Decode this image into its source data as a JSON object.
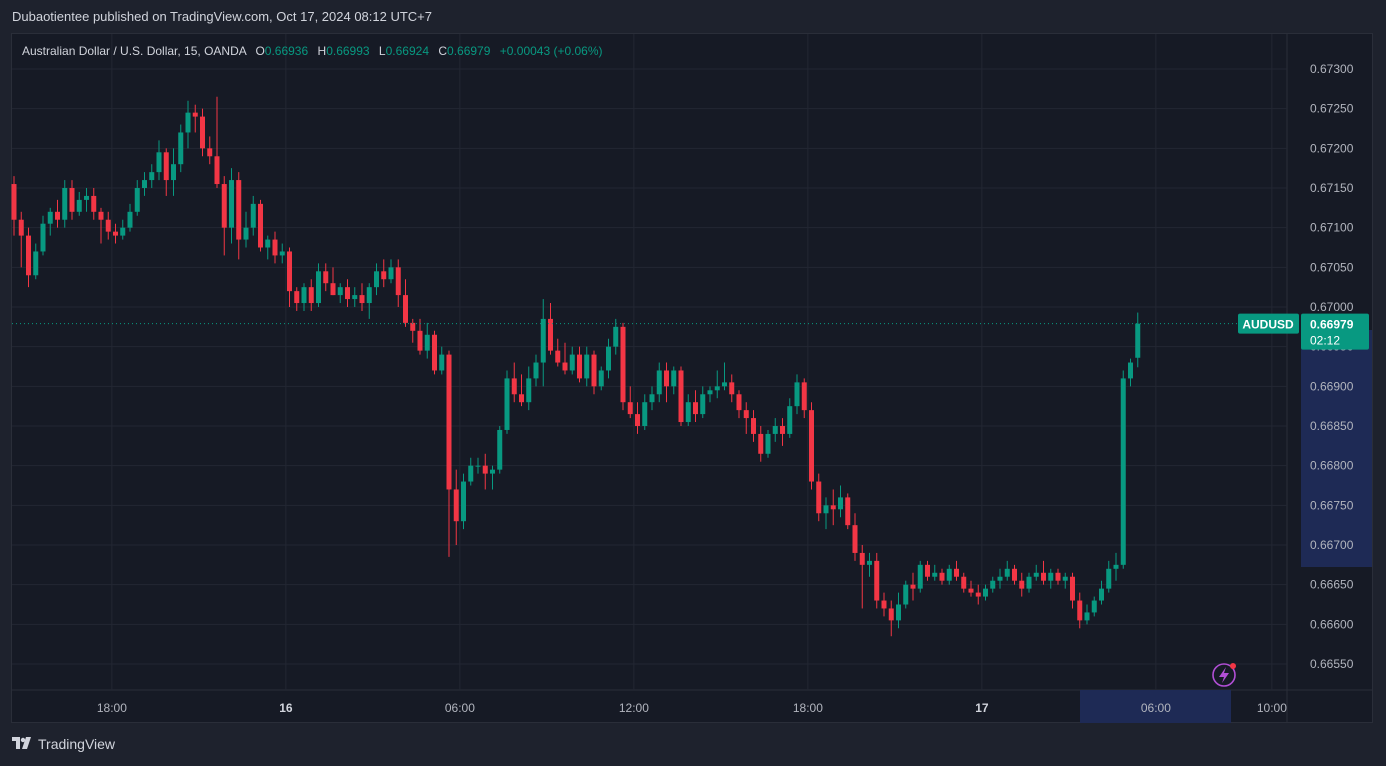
{
  "header": {
    "publish_line": "Dubaotientee published on TradingView.com, Oct 17, 2024 08:12 UTC+7"
  },
  "legend": {
    "symbol": "Australian Dollar / U.S. Dollar, 15, OANDA",
    "o_label": "O",
    "o_value": "0.66936",
    "h_label": "H",
    "h_value": "0.66993",
    "l_label": "L",
    "l_value": "0.66924",
    "c_label": "C",
    "c_value": "0.66979",
    "change": "+0.00043 (+0.06%)"
  },
  "price_tag": {
    "symbol": "AUDUSD",
    "price": "0.66979",
    "countdown": "02:12"
  },
  "footer": {
    "brand": "TradingView"
  },
  "icons": {
    "flash": "lightning-bolt-icon",
    "logo": "tradingview-logo-icon"
  },
  "colors": {
    "up": "#089981",
    "down": "#f23645",
    "bg": "#161a25",
    "grid": "#232733"
  },
  "chart_data": {
    "type": "candlestick",
    "symbol": "AUDUSD",
    "timeframe": "15",
    "ylim": [
      0.6652,
      0.6734
    ],
    "y_ticks": [
      "0.67300",
      "0.67250",
      "0.67200",
      "0.67150",
      "0.67100",
      "0.67050",
      "0.67000",
      "0.66950",
      "0.66900",
      "0.66850",
      "0.66800",
      "0.66750",
      "0.66700",
      "0.66650",
      "0.66600",
      "0.66550"
    ],
    "x_ticks": [
      {
        "label": "18:00",
        "bold": false,
        "i": 13.5
      },
      {
        "label": "16",
        "bold": true,
        "i": 37.5
      },
      {
        "label": "06:00",
        "bold": false,
        "i": 61.5
      },
      {
        "label": "12:00",
        "bold": false,
        "i": 85.5
      },
      {
        "label": "18:00",
        "bold": false,
        "i": 109.5
      },
      {
        "label": "17",
        "bold": true,
        "i": 133.5
      },
      {
        "label": "06:00",
        "bold": false,
        "i": 157.5
      },
      {
        "label": "10:00",
        "bold": false,
        "i": 173.5
      }
    ],
    "candles": [
      [
        0.67155,
        0.67165,
        0.6709,
        0.6711
      ],
      [
        0.6711,
        0.6712,
        0.6705,
        0.6709
      ],
      [
        0.6709,
        0.671,
        0.67025,
        0.6704
      ],
      [
        0.6704,
        0.6708,
        0.67035,
        0.6707
      ],
      [
        0.6707,
        0.67115,
        0.67065,
        0.67105
      ],
      [
        0.67105,
        0.67125,
        0.6709,
        0.6712
      ],
      [
        0.6712,
        0.67135,
        0.671,
        0.6711
      ],
      [
        0.6711,
        0.6716,
        0.671,
        0.6715
      ],
      [
        0.6715,
        0.6716,
        0.6711,
        0.6712
      ],
      [
        0.6712,
        0.67145,
        0.67115,
        0.67135
      ],
      [
        0.67135,
        0.6715,
        0.6712,
        0.6714
      ],
      [
        0.6714,
        0.6715,
        0.6711,
        0.6712
      ],
      [
        0.6712,
        0.67125,
        0.6708,
        0.6711
      ],
      [
        0.6711,
        0.6712,
        0.67085,
        0.67095
      ],
      [
        0.67095,
        0.67105,
        0.6708,
        0.6709
      ],
      [
        0.6709,
        0.6711,
        0.67085,
        0.671
      ],
      [
        0.671,
        0.6713,
        0.67095,
        0.6712
      ],
      [
        0.6712,
        0.6716,
        0.67115,
        0.6715
      ],
      [
        0.6715,
        0.6717,
        0.6714,
        0.6716
      ],
      [
        0.6716,
        0.6718,
        0.6715,
        0.6717
      ],
      [
        0.6717,
        0.6721,
        0.6716,
        0.67195
      ],
      [
        0.67195,
        0.672,
        0.6714,
        0.6716
      ],
      [
        0.6716,
        0.672,
        0.6714,
        0.6718
      ],
      [
        0.6718,
        0.6723,
        0.6717,
        0.6722
      ],
      [
        0.6722,
        0.6726,
        0.672,
        0.67245
      ],
      [
        0.67245,
        0.67255,
        0.6722,
        0.6724
      ],
      [
        0.6724,
        0.6725,
        0.6719,
        0.672
      ],
      [
        0.672,
        0.67215,
        0.6718,
        0.6719
      ],
      [
        0.6719,
        0.67265,
        0.6715,
        0.67155
      ],
      [
        0.67155,
        0.67165,
        0.67065,
        0.671
      ],
      [
        0.671,
        0.67175,
        0.6708,
        0.6716
      ],
      [
        0.6716,
        0.6717,
        0.6706,
        0.67085
      ],
      [
        0.67085,
        0.6712,
        0.67075,
        0.671
      ],
      [
        0.671,
        0.6714,
        0.6709,
        0.6713
      ],
      [
        0.6713,
        0.67135,
        0.6707,
        0.67075
      ],
      [
        0.67075,
        0.6709,
        0.6706,
        0.67085
      ],
      [
        0.67085,
        0.67095,
        0.67055,
        0.67065
      ],
      [
        0.67065,
        0.6708,
        0.67055,
        0.6707
      ],
      [
        0.6707,
        0.67075,
        0.67,
        0.6702
      ],
      [
        0.6702,
        0.67025,
        0.66995,
        0.67005
      ],
      [
        0.67005,
        0.6703,
        0.66995,
        0.67025
      ],
      [
        0.67025,
        0.67035,
        0.66995,
        0.67005
      ],
      [
        0.67005,
        0.67055,
        0.67,
        0.67045
      ],
      [
        0.67045,
        0.67055,
        0.6702,
        0.6703
      ],
      [
        0.6703,
        0.6705,
        0.67015,
        0.67015
      ],
      [
        0.67015,
        0.6703,
        0.67005,
        0.67025
      ],
      [
        0.67025,
        0.67035,
        0.67,
        0.6701
      ],
      [
        0.6701,
        0.67025,
        0.67,
        0.67015
      ],
      [
        0.67015,
        0.6703,
        0.66995,
        0.67005
      ],
      [
        0.67005,
        0.6703,
        0.66985,
        0.67025
      ],
      [
        0.67025,
        0.67055,
        0.67015,
        0.67045
      ],
      [
        0.67045,
        0.6706,
        0.67025,
        0.67035
      ],
      [
        0.67035,
        0.6706,
        0.6703,
        0.6705
      ],
      [
        0.6705,
        0.6706,
        0.67,
        0.67015
      ],
      [
        0.67015,
        0.67035,
        0.66975,
        0.6698
      ],
      [
        0.6698,
        0.66985,
        0.66955,
        0.6697
      ],
      [
        0.6697,
        0.66985,
        0.6694,
        0.66945
      ],
      [
        0.66945,
        0.6698,
        0.66935,
        0.66965
      ],
      [
        0.66965,
        0.6697,
        0.66915,
        0.6692
      ],
      [
        0.6692,
        0.6695,
        0.66915,
        0.6694
      ],
      [
        0.6694,
        0.66945,
        0.66685,
        0.6677
      ],
      [
        0.6677,
        0.66795,
        0.667,
        0.6673
      ],
      [
        0.6673,
        0.6679,
        0.6672,
        0.6678
      ],
      [
        0.6678,
        0.6681,
        0.66775,
        0.668
      ],
      [
        0.668,
        0.6681,
        0.6679,
        0.668
      ],
      [
        0.668,
        0.66815,
        0.6677,
        0.6679
      ],
      [
        0.6679,
        0.668,
        0.6677,
        0.66795
      ],
      [
        0.66795,
        0.6685,
        0.6679,
        0.66845
      ],
      [
        0.66845,
        0.6692,
        0.6684,
        0.6691
      ],
      [
        0.6691,
        0.6693,
        0.6688,
        0.6689
      ],
      [
        0.6689,
        0.66915,
        0.66875,
        0.6688
      ],
      [
        0.6688,
        0.66925,
        0.6687,
        0.6691
      ],
      [
        0.6691,
        0.6694,
        0.669,
        0.6693
      ],
      [
        0.6693,
        0.6701,
        0.669,
        0.66985
      ],
      [
        0.66985,
        0.67005,
        0.6694,
        0.66945
      ],
      [
        0.66945,
        0.6696,
        0.66925,
        0.6693
      ],
      [
        0.6693,
        0.66955,
        0.66915,
        0.6692
      ],
      [
        0.6692,
        0.6695,
        0.66915,
        0.6694
      ],
      [
        0.6694,
        0.6695,
        0.66905,
        0.6691
      ],
      [
        0.6691,
        0.6695,
        0.669,
        0.6694
      ],
      [
        0.6694,
        0.66945,
        0.6689,
        0.669
      ],
      [
        0.669,
        0.66925,
        0.66895,
        0.6692
      ],
      [
        0.6692,
        0.6696,
        0.6691,
        0.6695
      ],
      [
        0.6695,
        0.66985,
        0.6694,
        0.66975
      ],
      [
        0.66975,
        0.6698,
        0.6687,
        0.6688
      ],
      [
        0.6688,
        0.669,
        0.6686,
        0.66865
      ],
      [
        0.66865,
        0.6688,
        0.6684,
        0.6685
      ],
      [
        0.6685,
        0.6689,
        0.66845,
        0.6688
      ],
      [
        0.6688,
        0.669,
        0.6687,
        0.6689
      ],
      [
        0.6689,
        0.6693,
        0.6688,
        0.6692
      ],
      [
        0.6692,
        0.6693,
        0.6688,
        0.669
      ],
      [
        0.669,
        0.66925,
        0.6689,
        0.6692
      ],
      [
        0.6692,
        0.66925,
        0.6685,
        0.66855
      ],
      [
        0.66855,
        0.6689,
        0.6685,
        0.6688
      ],
      [
        0.6688,
        0.66895,
        0.66855,
        0.66865
      ],
      [
        0.66865,
        0.669,
        0.6686,
        0.6689
      ],
      [
        0.6689,
        0.669,
        0.6688,
        0.66895
      ],
      [
        0.66895,
        0.6692,
        0.66885,
        0.669
      ],
      [
        0.669,
        0.6693,
        0.66895,
        0.66905
      ],
      [
        0.66905,
        0.66915,
        0.6688,
        0.6689
      ],
      [
        0.6689,
        0.66895,
        0.6686,
        0.6687
      ],
      [
        0.6687,
        0.6688,
        0.6684,
        0.6686
      ],
      [
        0.6686,
        0.6687,
        0.6683,
        0.6684
      ],
      [
        0.6684,
        0.6685,
        0.66805,
        0.66815
      ],
      [
        0.66815,
        0.66845,
        0.6681,
        0.6684
      ],
      [
        0.6684,
        0.6686,
        0.6683,
        0.6685
      ],
      [
        0.6685,
        0.6686,
        0.66825,
        0.6684
      ],
      [
        0.6684,
        0.66885,
        0.66835,
        0.66875
      ],
      [
        0.66875,
        0.66915,
        0.66865,
        0.66905
      ],
      [
        0.66905,
        0.6691,
        0.6686,
        0.6687
      ],
      [
        0.6687,
        0.6688,
        0.6677,
        0.6678
      ],
      [
        0.6678,
        0.6679,
        0.6673,
        0.6674
      ],
      [
        0.6674,
        0.6676,
        0.6672,
        0.6675
      ],
      [
        0.6675,
        0.6677,
        0.66725,
        0.66745
      ],
      [
        0.66745,
        0.66775,
        0.66735,
        0.6676
      ],
      [
        0.6676,
        0.66765,
        0.6672,
        0.66725
      ],
      [
        0.66725,
        0.6674,
        0.6668,
        0.6669
      ],
      [
        0.6669,
        0.667,
        0.6662,
        0.66675
      ],
      [
        0.66675,
        0.6669,
        0.6666,
        0.6668
      ],
      [
        0.6668,
        0.6669,
        0.6662,
        0.6663
      ],
      [
        0.6663,
        0.6664,
        0.6661,
        0.6662
      ],
      [
        0.6662,
        0.6663,
        0.66585,
        0.66605
      ],
      [
        0.66605,
        0.6664,
        0.66595,
        0.66625
      ],
      [
        0.66625,
        0.66655,
        0.6662,
        0.6665
      ],
      [
        0.6665,
        0.66665,
        0.6663,
        0.66645
      ],
      [
        0.66645,
        0.6668,
        0.6664,
        0.66675
      ],
      [
        0.66675,
        0.6668,
        0.66655,
        0.6666
      ],
      [
        0.6666,
        0.66675,
        0.66655,
        0.66665
      ],
      [
        0.66665,
        0.6667,
        0.6665,
        0.66655
      ],
      [
        0.66655,
        0.66675,
        0.6665,
        0.6667
      ],
      [
        0.6667,
        0.6668,
        0.66655,
        0.6666
      ],
      [
        0.6666,
        0.66665,
        0.6664,
        0.66645
      ],
      [
        0.66645,
        0.66655,
        0.66635,
        0.6664
      ],
      [
        0.6664,
        0.6665,
        0.66625,
        0.66635
      ],
      [
        0.66635,
        0.6665,
        0.6663,
        0.66645
      ],
      [
        0.66645,
        0.6666,
        0.6664,
        0.66655
      ],
      [
        0.66655,
        0.6667,
        0.66645,
        0.6666
      ],
      [
        0.6666,
        0.6668,
        0.66655,
        0.6667
      ],
      [
        0.6667,
        0.66675,
        0.6665,
        0.66655
      ],
      [
        0.66655,
        0.66665,
        0.66635,
        0.66645
      ],
      [
        0.66645,
        0.66665,
        0.6664,
        0.6666
      ],
      [
        0.6666,
        0.66675,
        0.66655,
        0.66665
      ],
      [
        0.66665,
        0.6668,
        0.6665,
        0.66655
      ],
      [
        0.66655,
        0.6667,
        0.66645,
        0.66665
      ],
      [
        0.66665,
        0.6667,
        0.6665,
        0.66655
      ],
      [
        0.66655,
        0.66665,
        0.66645,
        0.6666
      ],
      [
        0.6666,
        0.66665,
        0.6662,
        0.6663
      ],
      [
        0.6663,
        0.6664,
        0.66595,
        0.66605
      ],
      [
        0.66605,
        0.66625,
        0.666,
        0.66615
      ],
      [
        0.66615,
        0.66635,
        0.6661,
        0.6663
      ],
      [
        0.6663,
        0.66655,
        0.66625,
        0.66645
      ],
      [
        0.66645,
        0.6668,
        0.6664,
        0.6667
      ],
      [
        0.6667,
        0.6669,
        0.66655,
        0.66675
      ],
      [
        0.66675,
        0.6692,
        0.6667,
        0.6691
      ],
      [
        0.6691,
        0.66935,
        0.669,
        0.6693
      ],
      [
        0.66936,
        0.66993,
        0.66924,
        0.66979
      ]
    ]
  }
}
